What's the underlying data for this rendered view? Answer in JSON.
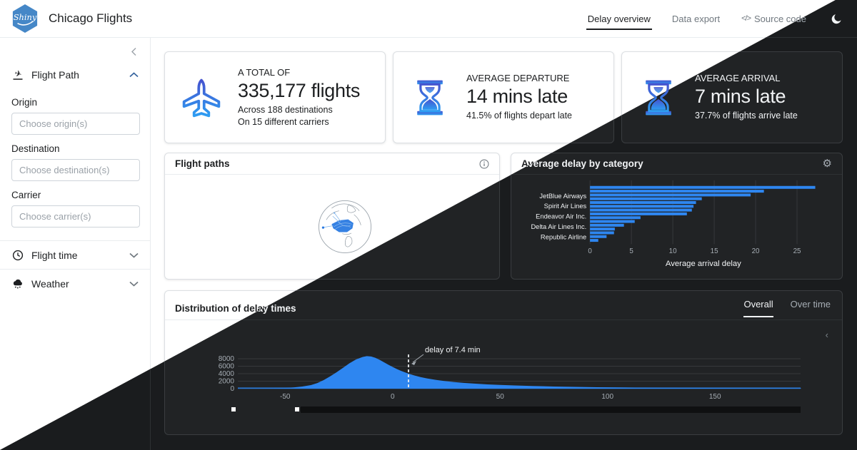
{
  "navbar": {
    "logo_text": "Shiny",
    "title": "Chicago Flights",
    "tabs": [
      {
        "label": "Delay overview",
        "active": true
      },
      {
        "label": "Data export",
        "active": false
      },
      {
        "label": "Source code",
        "active": false,
        "icon_text": "</>"
      }
    ]
  },
  "sidebar": {
    "sections": [
      {
        "label": "Flight Path",
        "icon": "plane-arrival-icon",
        "expanded": true,
        "fields": [
          {
            "label": "Origin",
            "placeholder": "Choose origin(s)"
          },
          {
            "label": "Destination",
            "placeholder": "Choose destination(s)"
          },
          {
            "label": "Carrier",
            "placeholder": "Choose carrier(s)"
          }
        ]
      },
      {
        "label": "Flight time",
        "icon": "clock-icon",
        "expanded": false
      },
      {
        "label": "Weather",
        "icon": "cloud-rain-icon",
        "expanded": false
      }
    ]
  },
  "value_boxes": [
    {
      "title": "A TOTAL OF",
      "value": "335,177 flights",
      "subtitle1": "Across 188 destinations",
      "subtitle2": "On 15 different carriers",
      "icon": "plane-icon"
    },
    {
      "title": "AVERAGE DEPARTURE",
      "value": "14 mins late",
      "subtitle1": "41.5% of flights depart late",
      "icon": "hourglass-icon"
    },
    {
      "title": "AVERAGE ARRIVAL",
      "value": "7 mins late",
      "subtitle1": "37.7% of flights arrive late",
      "icon": "hourglass-icon"
    }
  ],
  "cards": {
    "flight_paths": {
      "title": "Flight paths"
    },
    "avg_delay": {
      "title": "Average delay by category"
    },
    "distribution": {
      "title": "Distribution of delay times",
      "tabs": [
        {
          "label": "Overall",
          "active": true
        },
        {
          "label": "Over time",
          "active": false
        }
      ]
    }
  },
  "misc": {
    "collapse_chevron": "left",
    "modebar_chevron": "‹"
  },
  "colors": {
    "accent_light": "#2a7ae2",
    "accent_dark": "#2e86f0",
    "logo_blue": "#4587c7"
  },
  "chart_data": [
    {
      "name": "avg_delay_by_category",
      "type": "bar",
      "orientation": "horizontal",
      "title": "Average delay by category",
      "xlabel": "Average arrival delay",
      "xticks": [
        0,
        5,
        10,
        15,
        20,
        25
      ],
      "xlim": [
        0,
        27.5
      ],
      "grid": true,
      "values": [
        27.2,
        21.0,
        19.4,
        13.5,
        12.8,
        12.5,
        12.3,
        11.7,
        6.1,
        5.4,
        4.1,
        3.0,
        2.9,
        2.0,
        1.0
      ],
      "visible_labels": [
        {
          "label": "JetBlue Airways",
          "row": 2.5
        },
        {
          "label": "Spirit Air Lines",
          "row": 5.1
        },
        {
          "label": "Endeavor Air Inc.",
          "row": 7.9
        },
        {
          "label": "Delta Air Lines Inc.",
          "row": 10.6
        },
        {
          "label": "Republic Airline",
          "row": 13.3
        }
      ]
    },
    {
      "name": "delay_distribution",
      "type": "area",
      "title": "Distribution of delay times",
      "annotation": "delay of 7.4 min",
      "annotation_x": 7.4,
      "xticks": [
        "-50",
        "0",
        "50",
        "100",
        "150"
      ],
      "xtick_values": [
        -50,
        0,
        50,
        100,
        150
      ],
      "yticks": [
        "0",
        "2000",
        "4000",
        "6000",
        "8000"
      ],
      "ytick_values": [
        0,
        2000,
        4000,
        6000,
        8000
      ],
      "xlim": [
        -72,
        190
      ],
      "ylim": [
        0,
        9000
      ],
      "grid": true,
      "points": [
        [
          -70,
          30
        ],
        [
          -62,
          60
        ],
        [
          -56,
          110
        ],
        [
          -50,
          200
        ],
        [
          -46,
          330
        ],
        [
          -42,
          560
        ],
        [
          -38,
          950
        ],
        [
          -35,
          1500
        ],
        [
          -32,
          2300
        ],
        [
          -29,
          3300
        ],
        [
          -26,
          4400
        ],
        [
          -23,
          5600
        ],
        [
          -20,
          6800
        ],
        [
          -17,
          7800
        ],
        [
          -14,
          8450
        ],
        [
          -12,
          8700
        ],
        [
          -10,
          8600
        ],
        [
          -8,
          8250
        ],
        [
          -6,
          7700
        ],
        [
          -4,
          7050
        ],
        [
          -2,
          6400
        ],
        [
          0,
          5800
        ],
        [
          2,
          5250
        ],
        [
          4,
          4750
        ],
        [
          6,
          4300
        ],
        [
          8,
          3900
        ],
        [
          10,
          3550
        ],
        [
          13,
          3100
        ],
        [
          16,
          2750
        ],
        [
          20,
          2350
        ],
        [
          24,
          2050
        ],
        [
          28,
          1800
        ],
        [
          33,
          1550
        ],
        [
          38,
          1350
        ],
        [
          44,
          1150
        ],
        [
          50,
          1000
        ],
        [
          57,
          860
        ],
        [
          65,
          720
        ],
        [
          75,
          580
        ],
        [
          85,
          470
        ],
        [
          95,
          390
        ],
        [
          105,
          330
        ],
        [
          115,
          280
        ],
        [
          125,
          240
        ],
        [
          135,
          210
        ],
        [
          145,
          185
        ],
        [
          155,
          165
        ],
        [
          165,
          150
        ],
        [
          175,
          135
        ],
        [
          185,
          120
        ],
        [
          190,
          115
        ]
      ]
    }
  ]
}
